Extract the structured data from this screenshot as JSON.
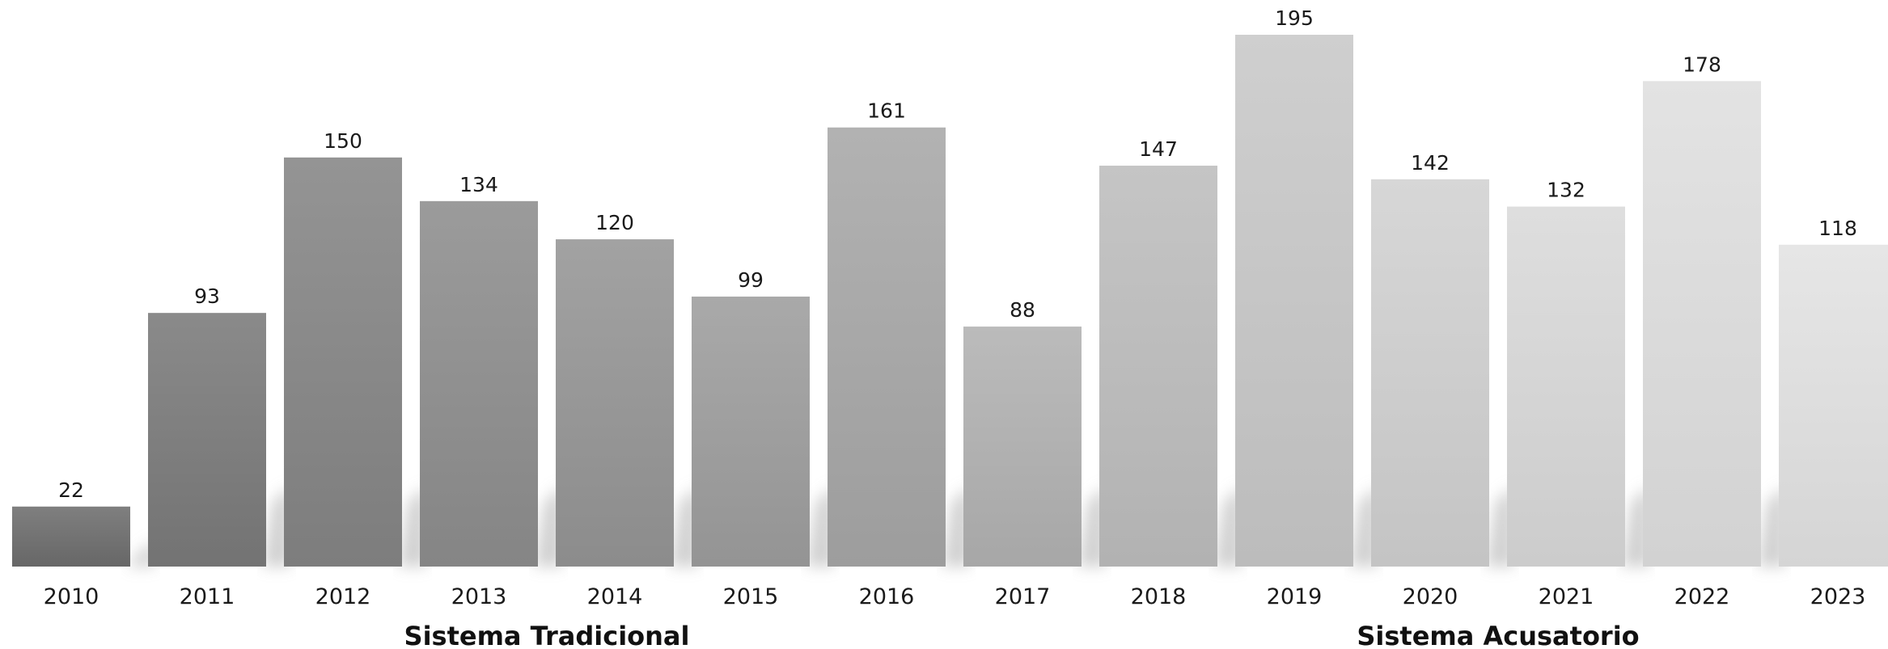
{
  "chart_data": {
    "type": "bar",
    "title": "",
    "xlabel": "",
    "ylabel": "",
    "categories": [
      "2010",
      "2011",
      "2012",
      "2013",
      "2014",
      "2015",
      "2016",
      "2017",
      "2018",
      "2019",
      "2020",
      "2021",
      "2022",
      "2023"
    ],
    "values": [
      22,
      93,
      150,
      134,
      120,
      99,
      161,
      88,
      147,
      195,
      142,
      132,
      178,
      118
    ],
    "ylim": [
      0,
      195
    ],
    "grid": false,
    "legend": "none",
    "groups": [
      {
        "name": "Sistema Tradicional",
        "categories": [
          "2010",
          "2011",
          "2012",
          "2013",
          "2014",
          "2015",
          "2016",
          "2017"
        ]
      },
      {
        "name": "Sistema Acusatorio",
        "categories": [
          "2018",
          "2019",
          "2020",
          "2021",
          "2022",
          "2023"
        ]
      }
    ],
    "colors": [
      "#6e6e6e",
      "#7a7a7a",
      "#858585",
      "#8d8d8d",
      "#959595",
      "#9d9d9d",
      "#a7a7a7",
      "#b2b2b2",
      "#bdbdbd",
      "#c8c8c8",
      "#d1d1d1",
      "#d9d9d9",
      "#dfdfdf",
      "#e3e3e3"
    ]
  }
}
